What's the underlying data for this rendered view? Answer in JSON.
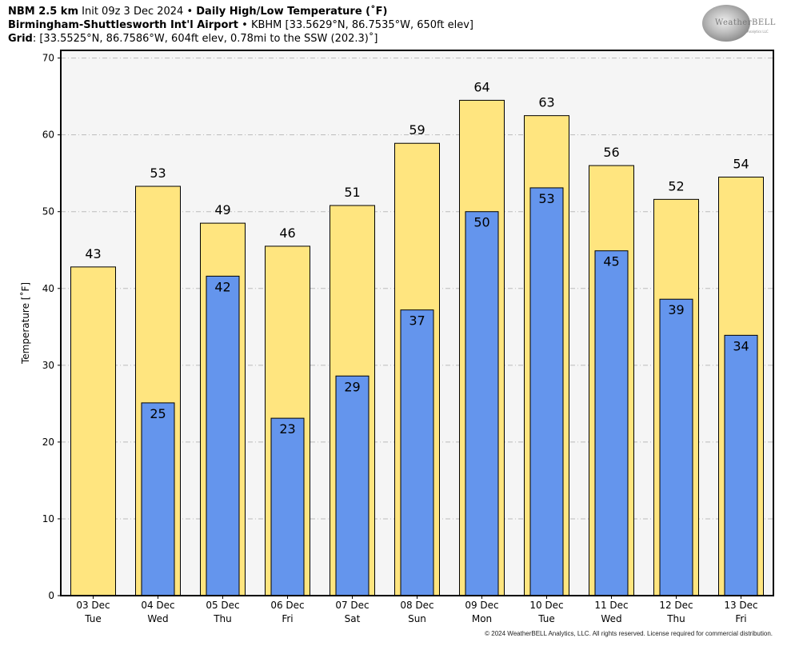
{
  "header": {
    "line1_bold_a": "NBM 2.5 km",
    "line1_text_a": " Init 09z 3 Dec 2024 • ",
    "line1_bold_b": "Daily High/Low Temperature (˚F)",
    "line2_bold": "Birmingham-Shuttlesworth Int'l Airport",
    "line2_text": " • KBHM [33.5629°N, 86.7535°W, 650ft elev]",
    "line3_bold": "Grid",
    "line3_text": ": [33.5525°N, 86.7586°W, 604ft elev, 0.78mi to the SSW (202.3)˚]"
  },
  "logo": {
    "text": "WeatherBELL",
    "sub": "Analytics LLC"
  },
  "footer": {
    "copyright": "© 2024 WeatherBELL Analytics, LLC. All rights reserved. License required for commercial distribution."
  },
  "chart_data": {
    "type": "bar",
    "title": "Daily High/Low Temperature (˚F)",
    "ylabel": "Temperature [˚F]",
    "xlabel": "",
    "ylim": [
      0,
      71
    ],
    "yticks": [
      0,
      10,
      20,
      30,
      40,
      50,
      60,
      70
    ],
    "grid": true,
    "categories": [
      {
        "date": "03 Dec",
        "day": "Tue"
      },
      {
        "date": "04 Dec",
        "day": "Wed"
      },
      {
        "date": "05 Dec",
        "day": "Thu"
      },
      {
        "date": "06 Dec",
        "day": "Fri"
      },
      {
        "date": "07 Dec",
        "day": "Sat"
      },
      {
        "date": "08 Dec",
        "day": "Sun"
      },
      {
        "date": "09 Dec",
        "day": "Mon"
      },
      {
        "date": "10 Dec",
        "day": "Tue"
      },
      {
        "date": "11 Dec",
        "day": "Wed"
      },
      {
        "date": "12 Dec",
        "day": "Thu"
      },
      {
        "date": "13 Dec",
        "day": "Fri"
      }
    ],
    "series": [
      {
        "key": "high",
        "color": "#FFE57F",
        "values": [
          42.8,
          53.3,
          48.5,
          45.5,
          50.8,
          58.9,
          64.5,
          62.5,
          56.0,
          51.6,
          54.5
        ],
        "labels": [
          "43",
          "53",
          "49",
          "46",
          "51",
          "59",
          "64",
          "63",
          "56",
          "52",
          "54"
        ]
      },
      {
        "key": "low",
        "color": "#6495ED",
        "values": [
          null,
          25.1,
          41.6,
          23.1,
          28.6,
          37.2,
          50.0,
          53.1,
          44.9,
          38.6,
          33.9
        ],
        "labels": [
          "",
          "25",
          "42",
          "23",
          "29",
          "37",
          "50",
          "53",
          "45",
          "39",
          "34"
        ]
      }
    ],
    "colors": {
      "plot_bg": "#F5F5F5",
      "grid": "#BBBBBB"
    }
  }
}
